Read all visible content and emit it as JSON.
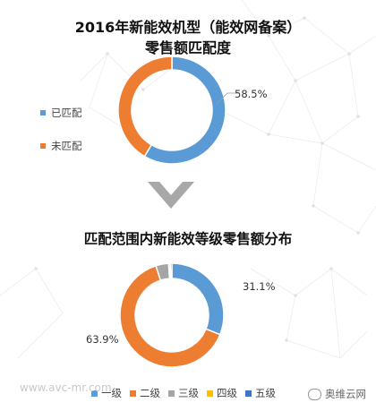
{
  "titles": {
    "chart1_line1": "2016年新能效机型（能效网备案）",
    "chart1_line2": "零售额匹配度",
    "chart2": "匹配范围内新能效等级零售额分布"
  },
  "colors": {
    "blue": "#5B9BD5",
    "orange": "#ED7D31",
    "gray": "#A5A5A5",
    "yellow": "#FFC000",
    "darkblue": "#4472C4",
    "arrow": "#a8a8a8"
  },
  "chart_data": [
    {
      "type": "pie",
      "title": "2016年新能效机型（能效网备案）零售额匹配度",
      "series": [
        {
          "name": "已匹配",
          "value": 58.5,
          "label": "58.5%",
          "color": "#5B9BD5"
        },
        {
          "name": "未匹配",
          "value": 41.5,
          "label": "",
          "color": "#ED7D31"
        }
      ],
      "legend_position": "left"
    },
    {
      "type": "pie",
      "title": "匹配范围内新能效等级零售额分布",
      "series": [
        {
          "name": "一级",
          "value": 31.1,
          "label": "31.1%",
          "color": "#5B9BD5"
        },
        {
          "name": "二级",
          "value": 63.9,
          "label": "63.9%",
          "color": "#ED7D31"
        },
        {
          "name": "三级",
          "value": 4.0,
          "label": "",
          "color": "#A5A5A5"
        },
        {
          "name": "四级",
          "value": 0.5,
          "label": "",
          "color": "#FFC000"
        },
        {
          "name": "五级",
          "value": 0.5,
          "label": "",
          "color": "#4472C4"
        }
      ],
      "legend_position": "bottom"
    }
  ],
  "watermark": "www.avc-mr.com",
  "brand": "奥维云网"
}
